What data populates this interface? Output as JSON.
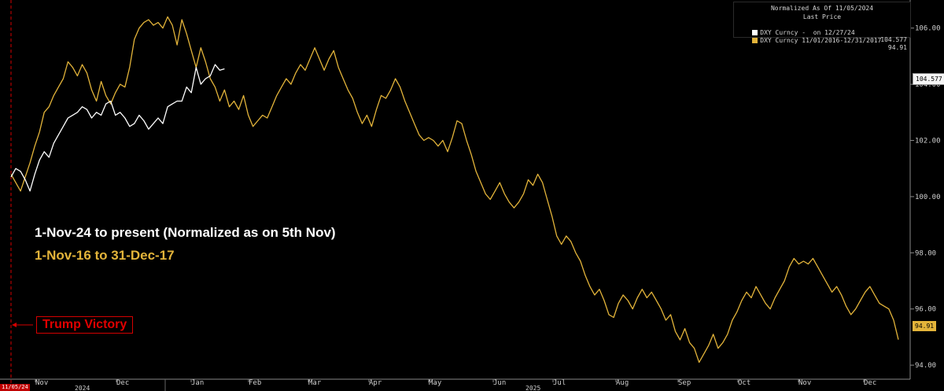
{
  "legend": {
    "title1": "Normalized As Of 11/05/2024",
    "title2": "Last Price",
    "row1_name": "DXY Curncy -  on 12/27/24",
    "row1_value": "104.577",
    "row2_name": "DXY Curncy 11/01/2016-12/31/2017",
    "row2_value": "94.91"
  },
  "annotations": {
    "white_label": "1-Nov-24 to present (Normalized as on 5th Nov)",
    "gold_label": "1-Nov-16 to 31-Dec-17",
    "event_label": "Trump Victory",
    "event_date_tag": "11/05/24"
  },
  "last_value_tags": {
    "white": "104.577",
    "gold": "94.91"
  },
  "colors": {
    "background": "#000000",
    "white_series": "#ffffff",
    "gold_series": "#e3b43a",
    "event": "#d40000"
  },
  "chart_data": {
    "type": "line",
    "title": "",
    "ylim": [
      93.5,
      107
    ],
    "y_axis_side": "right",
    "y_ticks": [
      "94.00",
      "96.00",
      "98.00",
      "100.00",
      "102.00",
      "104.00",
      "106.00"
    ],
    "x_ticks": [
      "Nov",
      "Dec",
      "Jan",
      "Feb",
      "Mar",
      "Apr",
      "May",
      "Jun",
      "Jul",
      "Aug",
      "Sep",
      "Oct",
      "Nov",
      "Dec"
    ],
    "x_year_labels": [
      "2024",
      "2025"
    ],
    "grid": false,
    "legend_position": "top-right",
    "series": [
      {
        "name": "DXY Curncy -  on 12/27/24",
        "color": "#ffffff",
        "values": [
          [
            0,
            100.7
          ],
          [
            1,
            101.0
          ],
          [
            2,
            100.9
          ],
          [
            3,
            100.6
          ],
          [
            4,
            100.2
          ],
          [
            5,
            100.8
          ],
          [
            6,
            101.3
          ],
          [
            7,
            101.6
          ],
          [
            8,
            101.4
          ],
          [
            9,
            101.9
          ],
          [
            10,
            102.2
          ],
          [
            11,
            102.5
          ],
          [
            12,
            102.8
          ],
          [
            13,
            102.9
          ],
          [
            14,
            103.0
          ],
          [
            15,
            103.2
          ],
          [
            16,
            103.1
          ],
          [
            17,
            102.8
          ],
          [
            18,
            103.0
          ],
          [
            19,
            102.9
          ],
          [
            20,
            103.3
          ],
          [
            21,
            103.4
          ],
          [
            22,
            102.9
          ],
          [
            23,
            103.0
          ],
          [
            24,
            102.8
          ],
          [
            25,
            102.5
          ],
          [
            26,
            102.6
          ],
          [
            27,
            102.9
          ],
          [
            28,
            102.7
          ],
          [
            29,
            102.4
          ],
          [
            30,
            102.6
          ],
          [
            31,
            102.8
          ],
          [
            32,
            102.6
          ],
          [
            33,
            103.2
          ],
          [
            34,
            103.3
          ],
          [
            35,
            103.4
          ],
          [
            36,
            103.4
          ],
          [
            37,
            103.9
          ],
          [
            38,
            103.7
          ],
          [
            39,
            104.6
          ],
          [
            40,
            104.0
          ],
          [
            41,
            104.2
          ],
          [
            42,
            104.3
          ],
          [
            43,
            104.7
          ],
          [
            44,
            104.5
          ],
          [
            45,
            104.55
          ]
        ]
      },
      {
        "name": "DXY Curncy 11/01/2016-12/31/2017",
        "color": "#e3b43a",
        "values": [
          [
            0,
            100.8
          ],
          [
            1,
            100.5
          ],
          [
            2,
            100.2
          ],
          [
            3,
            100.7
          ],
          [
            4,
            101.2
          ],
          [
            5,
            101.8
          ],
          [
            6,
            102.3
          ],
          [
            7,
            103.0
          ],
          [
            8,
            103.2
          ],
          [
            9,
            103.6
          ],
          [
            10,
            103.9
          ],
          [
            11,
            104.2
          ],
          [
            12,
            104.8
          ],
          [
            13,
            104.6
          ],
          [
            14,
            104.3
          ],
          [
            15,
            104.7
          ],
          [
            16,
            104.4
          ],
          [
            17,
            103.8
          ],
          [
            18,
            103.4
          ],
          [
            19,
            104.1
          ],
          [
            20,
            103.6
          ],
          [
            21,
            103.3
          ],
          [
            22,
            103.7
          ],
          [
            23,
            104.0
          ],
          [
            24,
            103.9
          ],
          [
            25,
            104.6
          ],
          [
            26,
            105.6
          ],
          [
            27,
            106.0
          ],
          [
            28,
            106.2
          ],
          [
            29,
            106.3
          ],
          [
            30,
            106.1
          ],
          [
            31,
            106.2
          ],
          [
            32,
            106.0
          ],
          [
            33,
            106.4
          ],
          [
            34,
            106.1
          ],
          [
            35,
            105.4
          ],
          [
            36,
            106.3
          ],
          [
            37,
            105.8
          ],
          [
            38,
            105.2
          ],
          [
            39,
            104.6
          ],
          [
            40,
            105.3
          ],
          [
            41,
            104.8
          ],
          [
            42,
            104.2
          ],
          [
            43,
            103.9
          ],
          [
            44,
            103.4
          ],
          [
            45,
            103.8
          ],
          [
            46,
            103.2
          ],
          [
            47,
            103.4
          ],
          [
            48,
            103.1
          ],
          [
            49,
            103.6
          ],
          [
            50,
            102.9
          ],
          [
            51,
            102.5
          ],
          [
            52,
            102.7
          ],
          [
            53,
            102.9
          ],
          [
            54,
            102.8
          ],
          [
            55,
            103.2
          ],
          [
            56,
            103.6
          ],
          [
            57,
            103.9
          ],
          [
            58,
            104.2
          ],
          [
            59,
            104.0
          ],
          [
            60,
            104.4
          ],
          [
            61,
            104.7
          ],
          [
            62,
            104.5
          ],
          [
            63,
            104.9
          ],
          [
            64,
            105.3
          ],
          [
            65,
            104.9
          ],
          [
            66,
            104.5
          ],
          [
            67,
            104.9
          ],
          [
            68,
            105.2
          ],
          [
            69,
            104.6
          ],
          [
            70,
            104.2
          ],
          [
            71,
            103.8
          ],
          [
            72,
            103.5
          ],
          [
            73,
            103.0
          ],
          [
            74,
            102.6
          ],
          [
            75,
            102.9
          ],
          [
            76,
            102.5
          ],
          [
            77,
            103.1
          ],
          [
            78,
            103.6
          ],
          [
            79,
            103.5
          ],
          [
            80,
            103.8
          ],
          [
            81,
            104.2
          ],
          [
            82,
            103.9
          ],
          [
            83,
            103.4
          ],
          [
            84,
            103.0
          ],
          [
            85,
            102.6
          ],
          [
            86,
            102.2
          ],
          [
            87,
            102.0
          ],
          [
            88,
            102.1
          ],
          [
            89,
            102.0
          ],
          [
            90,
            101.8
          ],
          [
            91,
            102.0
          ],
          [
            92,
            101.6
          ],
          [
            93,
            102.1
          ],
          [
            94,
            102.7
          ],
          [
            95,
            102.6
          ],
          [
            96,
            102.0
          ],
          [
            97,
            101.5
          ],
          [
            98,
            100.9
          ],
          [
            99,
            100.5
          ],
          [
            100,
            100.1
          ],
          [
            101,
            99.9
          ],
          [
            102,
            100.2
          ],
          [
            103,
            100.5
          ],
          [
            104,
            100.1
          ],
          [
            105,
            99.8
          ],
          [
            106,
            99.6
          ],
          [
            107,
            99.8
          ],
          [
            108,
            100.1
          ],
          [
            109,
            100.6
          ],
          [
            110,
            100.4
          ],
          [
            111,
            100.8
          ],
          [
            112,
            100.5
          ],
          [
            113,
            99.9
          ],
          [
            114,
            99.3
          ],
          [
            115,
            98.6
          ],
          [
            116,
            98.3
          ],
          [
            117,
            98.6
          ],
          [
            118,
            98.4
          ],
          [
            119,
            98.0
          ],
          [
            120,
            97.7
          ],
          [
            121,
            97.2
          ],
          [
            122,
            96.8
          ],
          [
            123,
            96.5
          ],
          [
            124,
            96.7
          ],
          [
            125,
            96.3
          ],
          [
            126,
            95.8
          ],
          [
            127,
            95.7
          ],
          [
            128,
            96.2
          ],
          [
            129,
            96.5
          ],
          [
            130,
            96.3
          ],
          [
            131,
            96.0
          ],
          [
            132,
            96.4
          ],
          [
            133,
            96.7
          ],
          [
            134,
            96.4
          ],
          [
            135,
            96.6
          ],
          [
            136,
            96.3
          ],
          [
            137,
            96.0
          ],
          [
            138,
            95.6
          ],
          [
            139,
            95.8
          ],
          [
            140,
            95.2
          ],
          [
            141,
            94.9
          ],
          [
            142,
            95.3
          ],
          [
            143,
            94.8
          ],
          [
            144,
            94.6
          ],
          [
            145,
            94.1
          ],
          [
            146,
            94.4
          ],
          [
            147,
            94.7
          ],
          [
            148,
            95.1
          ],
          [
            149,
            94.6
          ],
          [
            150,
            94.8
          ],
          [
            151,
            95.1
          ],
          [
            152,
            95.6
          ],
          [
            153,
            95.9
          ],
          [
            154,
            96.3
          ],
          [
            155,
            96.6
          ],
          [
            156,
            96.4
          ],
          [
            157,
            96.8
          ],
          [
            158,
            96.5
          ],
          [
            159,
            96.2
          ],
          [
            160,
            96.0
          ],
          [
            161,
            96.4
          ],
          [
            162,
            96.7
          ],
          [
            163,
            97.0
          ],
          [
            164,
            97.5
          ],
          [
            165,
            97.8
          ],
          [
            166,
            97.6
          ],
          [
            167,
            97.7
          ],
          [
            168,
            97.6
          ],
          [
            169,
            97.8
          ],
          [
            170,
            97.5
          ],
          [
            171,
            97.2
          ],
          [
            172,
            96.9
          ],
          [
            173,
            96.6
          ],
          [
            174,
            96.8
          ],
          [
            175,
            96.5
          ],
          [
            176,
            96.1
          ],
          [
            177,
            95.8
          ],
          [
            178,
            96.0
          ],
          [
            179,
            96.3
          ],
          [
            180,
            96.6
          ],
          [
            181,
            96.8
          ],
          [
            182,
            96.5
          ],
          [
            183,
            96.2
          ],
          [
            184,
            96.1
          ],
          [
            185,
            96.0
          ],
          [
            186,
            95.6
          ],
          [
            187,
            94.91
          ]
        ]
      }
    ]
  }
}
